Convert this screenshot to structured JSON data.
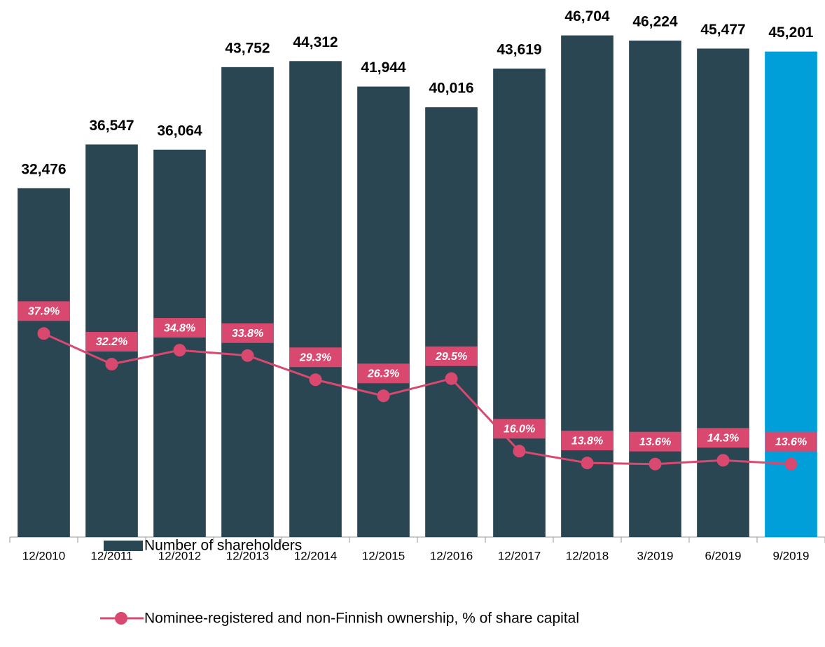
{
  "chart_data": {
    "type": "bar",
    "categories": [
      "12/2010",
      "12/2011",
      "12/2012",
      "12/2013",
      "12/2014",
      "12/2015",
      "12/2016",
      "12/2017",
      "12/2018",
      "3/2019",
      "6/2019",
      "9/2019"
    ],
    "series": [
      {
        "name": "Number of shareholders",
        "type": "bar",
        "axis": "y",
        "color": "#2b4653",
        "colors": [
          "#2b4653",
          "#2b4653",
          "#2b4653",
          "#2b4653",
          "#2b4653",
          "#2b4653",
          "#2b4653",
          "#2b4653",
          "#2b4653",
          "#2b4653",
          "#2b4653",
          "#009fda"
        ],
        "values": [
          32476,
          36547,
          36064,
          43752,
          44312,
          41944,
          40016,
          43619,
          46704,
          46224,
          45477,
          45201
        ],
        "value_labels": [
          "32,476",
          "36,547",
          "36,064",
          "43,752",
          "44,312",
          "41,944",
          "40,016",
          "43,619",
          "46,704",
          "46,224",
          "45,477",
          "45,201"
        ]
      },
      {
        "name": "Nominee-registered and non-Finnish ownership, % of share capital",
        "type": "line",
        "axis": "y2",
        "color": "#d9486f",
        "values": [
          37.9,
          32.2,
          34.8,
          33.8,
          29.3,
          26.3,
          29.5,
          16.0,
          13.8,
          13.6,
          14.3,
          13.6
        ],
        "value_labels": [
          "37.9%",
          "32.2%",
          "34.8%",
          "33.8%",
          "29.3%",
          "26.3%",
          "29.5%",
          "16.0%",
          "13.8%",
          "13.6%",
          "14.3%",
          "13.6%"
        ]
      }
    ],
    "ylim": [
      0,
      50000
    ],
    "y2lim": [
      0,
      100
    ],
    "grid": false
  }
}
